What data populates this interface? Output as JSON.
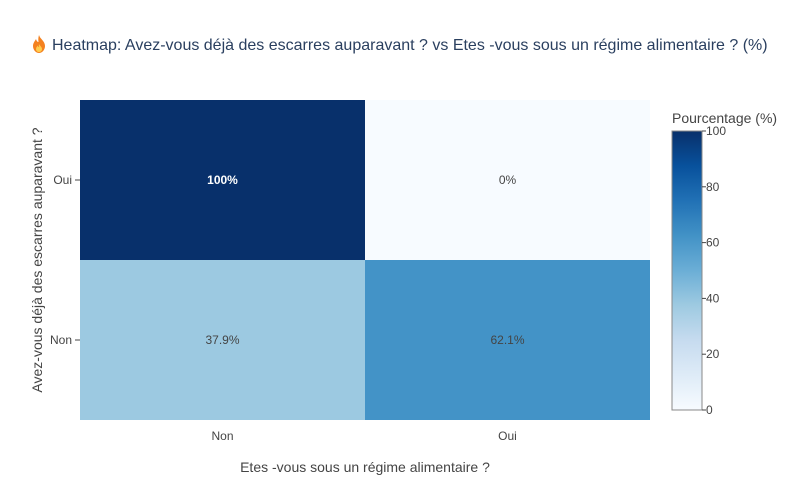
{
  "title": "Heatmap: Avez-vous déjà des escarres auparavant ? vs Etes -vous sous un régime alimentaire ? (%)",
  "title_icon": "flame-icon",
  "chart_data": {
    "type": "heatmap",
    "title": "Heatmap: Avez-vous déjà des escarres auparavant ? vs Etes -vous sous un régime alimentaire ? (%)",
    "xlabel": "Etes -vous sous un régime alimentaire ?",
    "ylabel": "Avez-vous déjà des escarres auparavant ?",
    "x_categories": [
      "Non",
      "Oui"
    ],
    "y_categories": [
      "Oui",
      "Non"
    ],
    "values": [
      [
        100,
        0
      ],
      [
        37.9,
        62.1
      ]
    ],
    "labels": [
      [
        "100%",
        "0%"
      ],
      [
        "37.9%",
        "62.1%"
      ]
    ],
    "colorscale": "Blues",
    "colorbar": {
      "title": "Pourcentage (%)",
      "range": [
        0,
        100
      ],
      "ticks": [
        "0",
        "20",
        "40",
        "60",
        "80",
        "100"
      ]
    }
  }
}
